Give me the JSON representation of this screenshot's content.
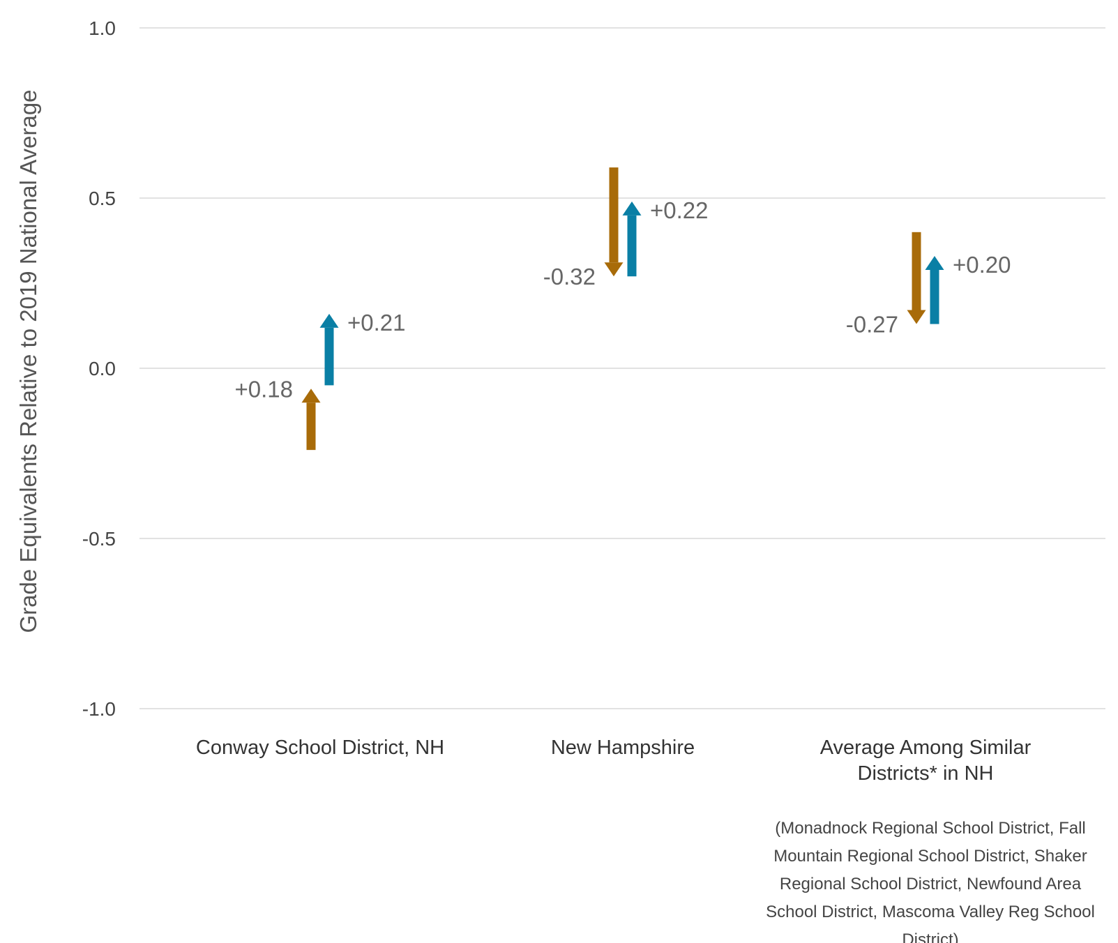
{
  "chart_data": {
    "type": "arrow",
    "ylabel": "Grade Equivalents Relative to 2019 National Average",
    "ylim": [
      -1.0,
      1.0
    ],
    "yticks": [
      "1.0",
      "0.5",
      "0.0",
      "-0.5",
      "-1.0"
    ],
    "ytick_values": [
      1.0,
      0.5,
      0.0,
      -0.5,
      -1.0
    ],
    "grid": true,
    "colors": {
      "first": "#a86b09",
      "second": "#0a7fa5",
      "grid": "#e2e2e2"
    },
    "categories": [
      {
        "lines": [
          "Conway School District, NH"
        ],
        "note_lines": [],
        "arrows": [
          {
            "color_key": "first",
            "start": -0.24,
            "end": -0.06,
            "label": "+0.18"
          },
          {
            "color_key": "second",
            "start": -0.05,
            "end": 0.16,
            "label": "+0.21"
          }
        ]
      },
      {
        "lines": [
          "New Hampshire"
        ],
        "note_lines": [],
        "arrows": [
          {
            "color_key": "first",
            "start": 0.59,
            "end": 0.27,
            "label": "-0.32"
          },
          {
            "color_key": "second",
            "start": 0.27,
            "end": 0.49,
            "label": "+0.22"
          }
        ]
      },
      {
        "lines": [
          "Average Among Similar",
          "Districts* in NH"
        ],
        "note_lines": [
          "(Monadnock Regional School District, Fall",
          "Mountain Regional School District, Shaker",
          "Regional School District, Newfound Area",
          "School District, Mascoma Valley Reg School",
          "District)"
        ],
        "arrows": [
          {
            "color_key": "first",
            "start": 0.4,
            "end": 0.13,
            "label": "-0.27"
          },
          {
            "color_key": "second",
            "start": 0.13,
            "end": 0.33,
            "label": "+0.20"
          }
        ]
      }
    ]
  }
}
